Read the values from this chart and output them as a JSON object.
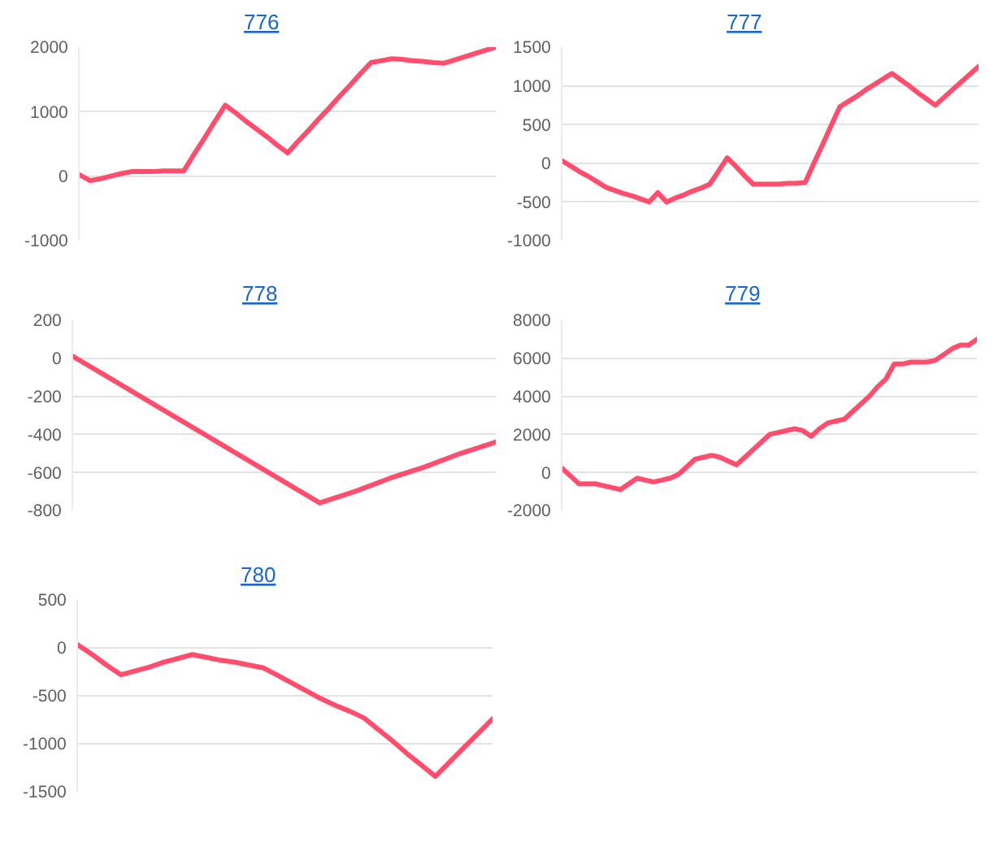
{
  "chart_data": [
    {
      "type": "line",
      "title": "776",
      "tick_labels": "y",
      "grid": "y",
      "color": "#ff4d6d",
      "ylim": [
        -1000,
        2000
      ],
      "yticks": [
        -1000,
        0,
        1000,
        2000
      ],
      "categories": [
        null,
        null,
        null,
        null,
        null,
        null,
        null,
        null,
        null,
        null,
        null,
        null,
        null,
        null,
        null,
        null,
        null,
        null,
        null,
        null,
        null,
        null,
        null,
        null,
        null,
        null,
        null,
        null,
        null,
        null,
        null,
        null,
        null,
        null,
        null,
        null,
        null,
        null,
        null,
        null,
        null
      ],
      "values": [
        20,
        -70,
        -40,
        0,
        40,
        70,
        70,
        70,
        80,
        80,
        80,
        340,
        590,
        850,
        1100,
        980,
        850,
        730,
        610,
        480,
        360,
        540,
        710,
        890,
        1060,
        1240,
        1410,
        1590,
        1760,
        1790,
        1820,
        1810,
        1790,
        1780,
        1760,
        1750,
        1800,
        1850,
        1900,
        1950,
        2000
      ]
    },
    {
      "type": "line",
      "title": "777",
      "tick_labels": "y",
      "grid": "y",
      "color": "#ff4d6d",
      "ylim": [
        -1000,
        1500
      ],
      "yticks": [
        -1000,
        -500,
        0,
        500,
        1000,
        1500
      ],
      "categories": [
        null,
        null,
        null,
        null,
        null,
        null,
        null,
        null,
        null,
        null,
        null,
        null,
        null,
        null,
        null,
        null,
        null,
        null,
        null,
        null,
        null,
        null,
        null,
        null,
        null,
        null,
        null,
        null,
        null,
        null,
        null,
        null,
        null,
        null,
        null,
        null,
        null,
        null,
        null,
        null,
        null,
        null,
        null,
        null,
        null,
        null,
        null,
        null,
        null
      ],
      "values": [
        30,
        -40,
        -110,
        -170,
        -240,
        -310,
        -350,
        -390,
        -420,
        -460,
        -500,
        -380,
        -500,
        -450,
        -410,
        -360,
        -320,
        -270,
        -100,
        70,
        -40,
        -160,
        -270,
        -270,
        -270,
        -270,
        -260,
        -260,
        -250,
        0,
        240,
        490,
        730,
        800,
        870,
        950,
        1020,
        1090,
        1160,
        1080,
        1000,
        910,
        830,
        750,
        850,
        950,
        1050,
        1150,
        1250
      ]
    },
    {
      "type": "line",
      "title": "778",
      "tick_labels": "y",
      "grid": "y",
      "color": "#ff4d6d",
      "ylim": [
        -800,
        200
      ],
      "yticks": [
        -800,
        -600,
        -400,
        -200,
        0,
        200
      ],
      "categories": [
        null,
        null,
        null,
        null,
        null,
        null,
        null,
        null,
        null,
        null,
        null,
        null,
        null
      ],
      "values": [
        10,
        -100,
        -210,
        -320,
        -430,
        -540,
        -650,
        -760,
        -700,
        -630,
        -570,
        -500,
        -440
      ]
    },
    {
      "type": "line",
      "title": "779",
      "tick_labels": "y",
      "grid": "y",
      "color": "#ff4d6d",
      "ylim": [
        -2000,
        8000
      ],
      "yticks": [
        -2000,
        0,
        2000,
        4000,
        6000,
        8000
      ],
      "categories": [
        null,
        null,
        null,
        null,
        null,
        null,
        null,
        null,
        null,
        null,
        null,
        null,
        null,
        null,
        null,
        null,
        null,
        null,
        null,
        null,
        null,
        null,
        null,
        null,
        null,
        null,
        null,
        null,
        null,
        null,
        null,
        null,
        null,
        null,
        null,
        null,
        null,
        null,
        null,
        null,
        null,
        null,
        null,
        null,
        null,
        null,
        null,
        null,
        null,
        null,
        null
      ],
      "values": [
        200,
        -200,
        -600,
        -600,
        -600,
        -700,
        -800,
        -900,
        -600,
        -300,
        -400,
        -500,
        -400,
        -300,
        -100,
        300,
        700,
        800,
        900,
        800,
        600,
        400,
        800,
        1200,
        1600,
        2000,
        2100,
        2200,
        2300,
        2200,
        1900,
        2300,
        2600,
        2700,
        2800,
        3200,
        3600,
        4000,
        4500,
        4900,
        5700,
        5700,
        5800,
        5800,
        5800,
        5900,
        6200,
        6500,
        6700,
        6700,
        7000
      ]
    },
    {
      "type": "line",
      "title": "780",
      "tick_labels": "y",
      "grid": "y",
      "color": "#ff4d6d",
      "ylim": [
        -1500,
        500
      ],
      "yticks": [
        -1500,
        -1000,
        -500,
        0,
        500
      ],
      "categories": [
        null,
        null,
        null,
        null,
        null,
        null,
        null,
        null,
        null,
        null,
        null,
        null,
        null,
        null,
        null,
        null,
        null,
        null,
        null,
        null,
        null,
        null,
        null,
        null,
        null,
        null,
        null,
        null,
        null,
        null
      ],
      "values": [
        30,
        -70,
        -180,
        -280,
        -240,
        -200,
        -150,
        -110,
        -70,
        -100,
        -130,
        -150,
        -180,
        -210,
        -290,
        -370,
        -450,
        -530,
        -600,
        -660,
        -730,
        -850,
        -970,
        -1100,
        -1220,
        -1340,
        -1190,
        -1040,
        -890,
        -740
      ]
    }
  ]
}
